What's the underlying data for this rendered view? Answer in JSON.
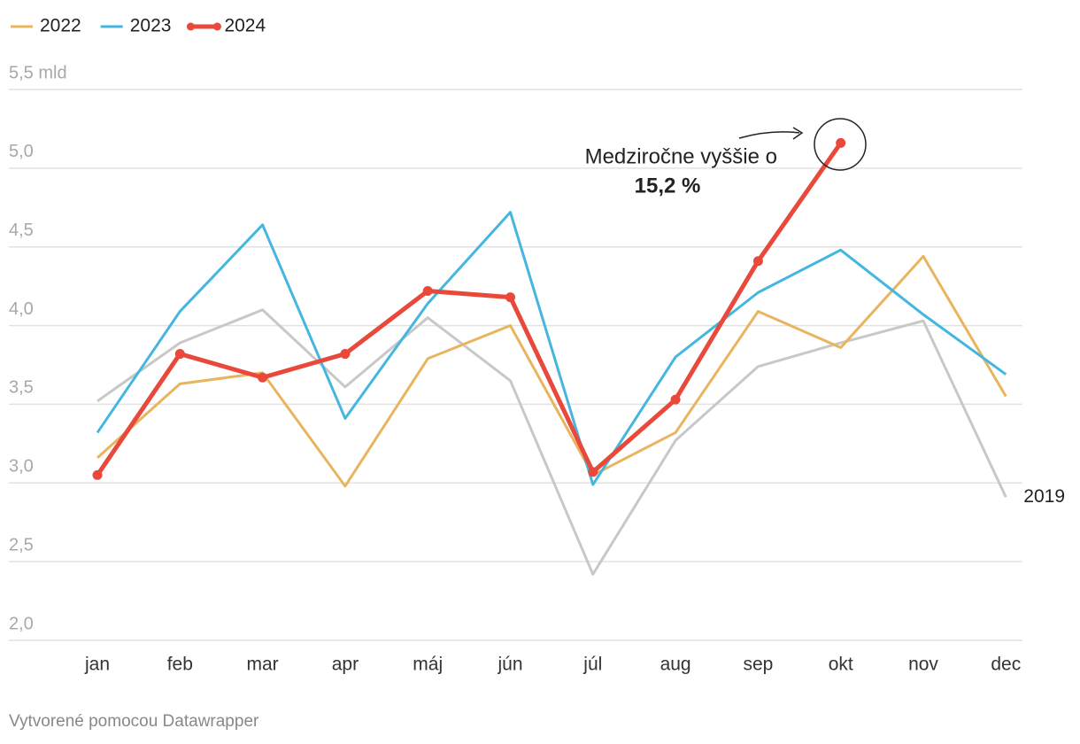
{
  "chart_data": {
    "type": "line",
    "categories": [
      "jan",
      "feb",
      "mar",
      "apr",
      "máj",
      "jún",
      "júl",
      "aug",
      "sep",
      "okt",
      "nov",
      "dec"
    ],
    "series": [
      {
        "name": "2019",
        "color": "#c8c8c8",
        "in_legend": false,
        "label_at_end": true,
        "values": [
          3.52,
          3.89,
          4.1,
          3.61,
          4.05,
          3.65,
          2.42,
          3.27,
          3.74,
          3.89,
          4.03,
          2.91
        ]
      },
      {
        "name": "2022",
        "color": "#e8b55e",
        "in_legend": true,
        "label_at_end": false,
        "values": [
          3.16,
          3.63,
          3.7,
          2.98,
          3.79,
          4.0,
          3.05,
          3.32,
          4.09,
          3.86,
          4.44,
          3.55
        ]
      },
      {
        "name": "2023",
        "color": "#45b6e0",
        "in_legend": true,
        "label_at_end": false,
        "values": [
          3.32,
          4.09,
          4.64,
          3.41,
          4.14,
          4.72,
          2.99,
          3.8,
          4.21,
          4.48,
          4.07,
          3.69
        ]
      },
      {
        "name": "2024",
        "color": "#e8493b",
        "in_legend": true,
        "label_at_end": false,
        "markers": true,
        "values": [
          3.05,
          3.82,
          3.67,
          3.82,
          4.22,
          4.18,
          3.07,
          3.53,
          4.41,
          5.16,
          null,
          null
        ]
      }
    ],
    "ylim": [
      2.0,
      5.5
    ],
    "yticks": [
      {
        "value": 2.0,
        "label": "2,0"
      },
      {
        "value": 2.5,
        "label": "2,5"
      },
      {
        "value": 3.0,
        "label": "3,0"
      },
      {
        "value": 3.5,
        "label": "3,5"
      },
      {
        "value": 4.0,
        "label": "4,0"
      },
      {
        "value": 4.5,
        "label": "4,5"
      },
      {
        "value": 5.0,
        "label": "5,0"
      },
      {
        "value": 5.5,
        "label": "5,5 mld"
      }
    ],
    "grid": true,
    "annotation": {
      "text": "Medziročne vyššie o",
      "value_text": "15,2 %"
    },
    "credit": "Vytvorené pomocou Datawrapper"
  }
}
